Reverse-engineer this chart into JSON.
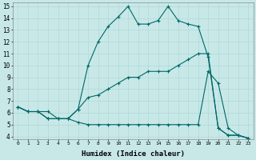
{
  "xlabel": "Humidex (Indice chaleur)",
  "bg_color": "#c8e8e8",
  "line_color": "#006868",
  "grid_color": "#b0d8d8",
  "xlim": [
    -0.5,
    23.5
  ],
  "ylim": [
    3.8,
    15.3
  ],
  "xticks": [
    0,
    1,
    2,
    3,
    4,
    5,
    6,
    7,
    8,
    9,
    10,
    11,
    12,
    13,
    14,
    15,
    16,
    17,
    18,
    19,
    20,
    21,
    22,
    23
  ],
  "yticks": [
    4,
    5,
    6,
    7,
    8,
    9,
    10,
    11,
    12,
    13,
    14,
    15
  ],
  "line1_x": [
    0,
    1,
    2,
    3,
    4,
    5,
    6,
    7,
    8,
    9,
    10,
    11,
    12,
    13,
    14,
    15,
    16,
    17,
    18,
    19,
    20,
    21,
    22,
    23
  ],
  "line1_y": [
    6.5,
    6.1,
    6.1,
    5.5,
    5.5,
    5.5,
    5.2,
    5.0,
    5.0,
    5.0,
    5.0,
    5.0,
    5.0,
    5.0,
    5.0,
    5.0,
    5.0,
    5.0,
    5.0,
    9.5,
    8.5,
    4.7,
    4.1,
    3.85
  ],
  "line2_x": [
    0,
    1,
    2,
    3,
    4,
    5,
    6,
    7,
    8,
    9,
    10,
    11,
    12,
    13,
    14,
    15,
    16,
    17,
    18,
    19,
    20,
    21,
    22,
    23
  ],
  "line2_y": [
    6.5,
    6.1,
    6.1,
    6.1,
    5.5,
    5.5,
    6.3,
    7.3,
    7.5,
    8.0,
    8.5,
    9.0,
    9.0,
    9.5,
    9.5,
    9.5,
    10.0,
    10.5,
    11.0,
    11.0,
    4.7,
    4.1,
    4.1,
    3.85
  ],
  "line3_x": [
    0,
    1,
    2,
    3,
    4,
    5,
    6,
    7,
    8,
    9,
    10,
    11,
    12,
    13,
    14,
    15,
    16,
    17,
    18,
    19,
    20,
    21,
    22,
    23
  ],
  "line3_y": [
    6.5,
    6.1,
    6.1,
    5.5,
    5.5,
    5.5,
    6.3,
    10.0,
    12.0,
    13.3,
    14.1,
    15.0,
    13.5,
    13.5,
    13.8,
    15.0,
    13.8,
    13.5,
    13.3,
    10.7,
    4.7,
    4.1,
    4.1,
    3.85
  ]
}
